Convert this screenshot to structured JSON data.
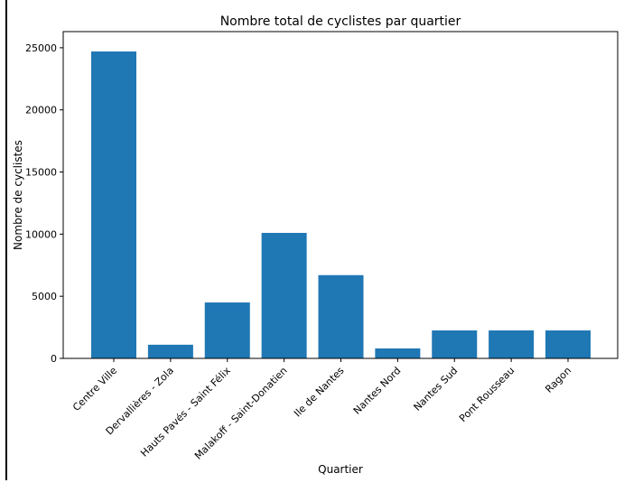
{
  "chart_data": {
    "type": "bar",
    "title": "Nombre total de cyclistes par quartier",
    "xlabel": "Quartier",
    "ylabel": "Nombre de cyclistes",
    "categories": [
      "Centre Ville",
      "Dervallières - Zola",
      "Hauts Pavés - Saint Félix",
      "Malakoff - Saint-Donatien",
      "Ile de Nantes",
      "Nantes Nord",
      "Nantes Sud",
      "Pont Rousseau",
      "Ragon"
    ],
    "values": [
      24700,
      1100,
      4500,
      10100,
      6700,
      800,
      2250,
      2250,
      2250
    ],
    "ylim": [
      0,
      26300
    ],
    "yticks": [
      0,
      5000,
      10000,
      15000,
      20000,
      25000
    ],
    "ytick_labels": [
      "0",
      "5000",
      "10000",
      "15000",
      "20000",
      "25000"
    ],
    "bar_color": "#1f77b4",
    "grid": false,
    "legend": "none"
  }
}
